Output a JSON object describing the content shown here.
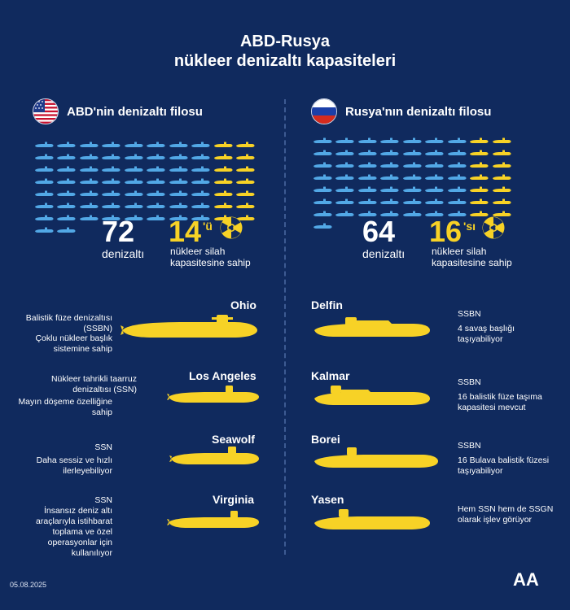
{
  "title": {
    "line1": "ABD-Rusya",
    "line2": "nükleer denizaltı kapasiteleri"
  },
  "colors": {
    "background": "#102a5e",
    "conventional": "#52a8e6",
    "nuclear": "#f7d226",
    "text": "#ffffff"
  },
  "usa": {
    "heading": "ABD'nin denizaltı filosu",
    "flag_icon": "us-flag-icon",
    "total_number": "72",
    "total_label": "denizaltı",
    "total_count": 72,
    "nuclear_count": 14,
    "nuclear_number": "14",
    "nuclear_suffix": "'ü",
    "nuclear_label": "nükleer silah kapasitesine sahip",
    "submarines": [
      {
        "name": "Ohio",
        "desc1": "Balistik füze denizaltısı (SSBN)",
        "desc2": "Çoklu nükleer başlık sistemine sahip"
      },
      {
        "name": "Los Angeles",
        "desc1": "Nükleer tahrikli taarruz denizaltısı (SSN)",
        "desc2": "Mayın döşeme özelliğine sahip"
      },
      {
        "name": "Seawolf",
        "desc1": "SSN",
        "desc2": "Daha sessiz ve hızlı ilerleyebiliyor"
      },
      {
        "name": "Virginia",
        "desc1": "SSN",
        "desc2": "İnsansız deniz altı araçlarıyla istihbarat toplama ve özel operasyonlar için kullanılıyor"
      }
    ]
  },
  "russia": {
    "heading": "Rusya'nın denizaltı filosu",
    "flag_icon": "russia-flag-icon",
    "total_number": "64",
    "total_label": "denizaltı",
    "total_count": 64,
    "nuclear_count": 16,
    "nuclear_number": "16",
    "nuclear_suffix": "'sı",
    "nuclear_label": "nükleer silah kapasitesine sahip",
    "submarines": [
      {
        "name": "Delfin",
        "desc1": "SSBN",
        "desc2": "4 savaş başlığı taşıyabiliyor"
      },
      {
        "name": "Kalmar",
        "desc1": "SSBN",
        "desc2": "16 balistik füze taşıma kapasitesi mevcut"
      },
      {
        "name": "Borei",
        "desc1": "SSBN",
        "desc2": "16 Bulava balistik füzesi taşıyabiliyor"
      },
      {
        "name": "Yasen",
        "desc1": "Hem SSN hem de SSGN olarak işlev görüyor",
        "desc2": ""
      }
    ]
  },
  "footer": {
    "date": "05.08.2025",
    "logo_text": "AA",
    "logo_icon": "aa-logo-icon"
  },
  "icons": {
    "radiation": "radiation-icon",
    "submarine": "submarine-icon"
  }
}
